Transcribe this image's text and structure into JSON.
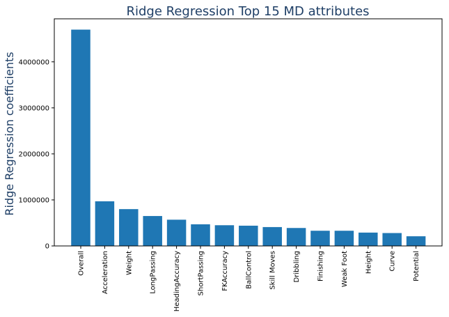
{
  "colors": {
    "bar": "#1f77b4",
    "title": "#1f3f66",
    "axis": "#000000"
  },
  "chart_data": {
    "type": "bar",
    "title": "Ridge Regression Top 15 MD attributes",
    "xlabel": "",
    "ylabel": "Ridge Regression coefficients",
    "categories": [
      "Overall",
      "Acceleration",
      "Weight",
      "LongPassing",
      "HeadingAccuracy",
      "ShortPassing",
      "FKAccuracy",
      "BallControl",
      "Skill Moves",
      "Dribbling",
      "Finishing",
      "Weak Foot",
      "Height",
      "Curve",
      "Potential"
    ],
    "values": [
      4700000,
      970000,
      800000,
      650000,
      570000,
      470000,
      450000,
      440000,
      410000,
      390000,
      330000,
      330000,
      290000,
      280000,
      210000
    ],
    "ylim": [
      0,
      4935000
    ],
    "yticks": [
      0,
      1000000,
      2000000,
      3000000,
      4000000
    ],
    "ytick_labels": [
      "0",
      "1000000",
      "2000000",
      "3000000",
      "4000000"
    ],
    "grid": false
  }
}
